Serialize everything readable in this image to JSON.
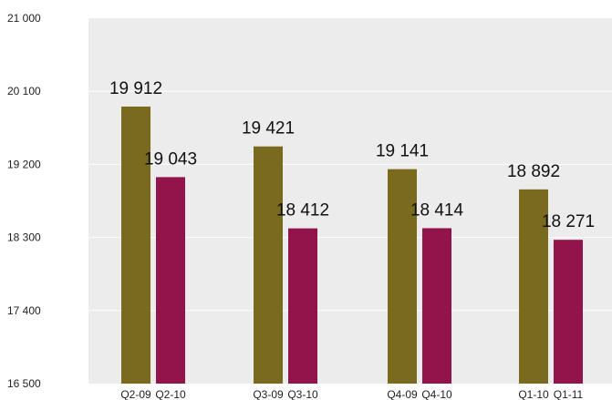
{
  "chart_data": {
    "type": "bar",
    "title": "",
    "xlabel": "",
    "ylabel": "",
    "ylim": [
      16500,
      21000
    ],
    "yticks": [
      "21 000",
      "20 100",
      "19 200",
      "18 300",
      "17 400",
      "16 500"
    ],
    "ytick_values": [
      21000,
      20100,
      19200,
      18300,
      17400,
      16500
    ],
    "grid": true,
    "legend": "none",
    "groups": [
      {
        "bars": [
          {
            "label": "Q2-09",
            "value": 19912,
            "value_label": "19 912",
            "color": "#7a6a1e"
          },
          {
            "label": "Q2-10",
            "value": 19043,
            "value_label": "19 043",
            "color": "#93144a"
          }
        ]
      },
      {
        "bars": [
          {
            "label": "Q3-09",
            "value": 19421,
            "value_label": "19 421",
            "color": "#7a6a1e"
          },
          {
            "label": "Q3-10",
            "value": 18412,
            "value_label": "18 412",
            "color": "#93144a"
          }
        ]
      },
      {
        "bars": [
          {
            "label": "Q4-09",
            "value": 19141,
            "value_label": "19 141",
            "color": "#7a6a1e"
          },
          {
            "label": "Q4-10",
            "value": 18414,
            "value_label": "18 414",
            "color": "#93144a"
          }
        ]
      },
      {
        "bars": [
          {
            "label": "Q1-10",
            "value": 18892,
            "value_label": "18 892",
            "color": "#7a6a1e"
          },
          {
            "label": "Q1-11",
            "value": 18271,
            "value_label": "18 271",
            "color": "#93144a"
          }
        ]
      }
    ],
    "colors": {
      "plot_background": "#ececec",
      "gridline": "#ffffff",
      "series_prior_year": "#7a6a1e",
      "series_current_year": "#93144a"
    }
  }
}
